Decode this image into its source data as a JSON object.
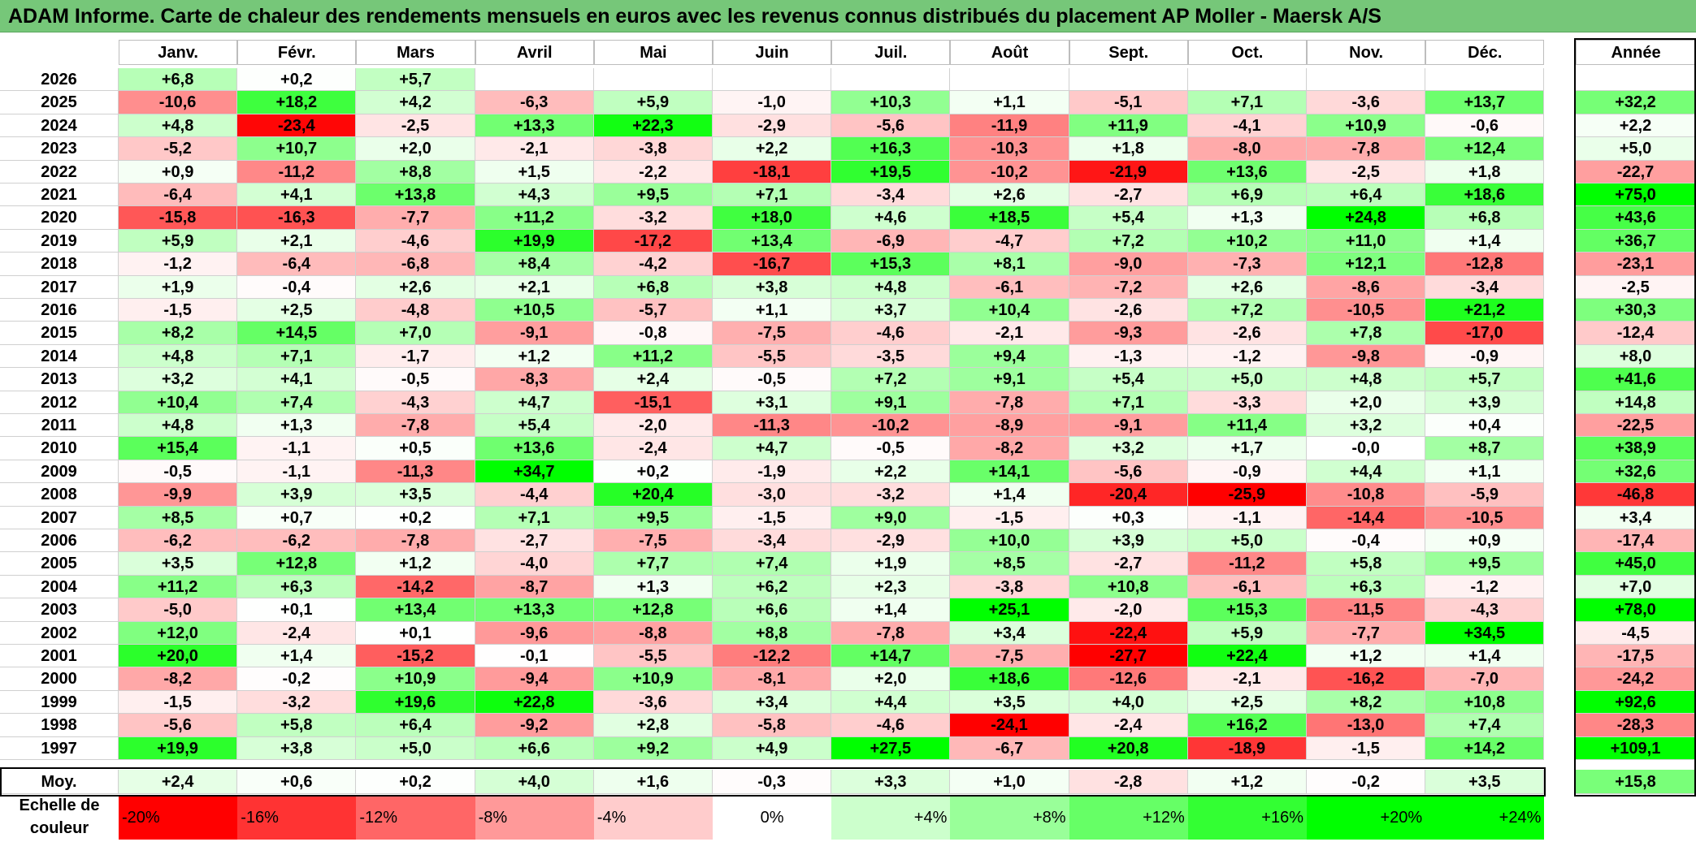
{
  "title": "ADAM Informe. Carte de chaleur des rendements mensuels en euros avec les revenus connus distribués du placement AP Moller - Maersk A/S",
  "chart_data": {
    "type": "heatmap",
    "title": "ADAM Informe. Carte de chaleur des rendements mensuels en euros avec les revenus connus distribués du placement AP Moller - Maersk A/S",
    "columns": [
      "Janv.",
      "Févr.",
      "Mars",
      "Avril",
      "Mai",
      "Juin",
      "Juil.",
      "Août",
      "Sept.",
      "Oct.",
      "Nov.",
      "Déc."
    ],
    "year_header": "Année",
    "rows": [
      {
        "year": "2026",
        "values": [
          "+6,8",
          "+0,2",
          "+5,7",
          "",
          "",
          "",
          "",
          "",
          "",
          "",
          "",
          ""
        ],
        "annual": ""
      },
      {
        "year": "2025",
        "values": [
          "-10,6",
          "+18,2",
          "+4,2",
          "-6,3",
          "+5,9",
          "-1,0",
          "+10,3",
          "+1,1",
          "-5,1",
          "+7,1",
          "-3,6",
          "+13,7"
        ],
        "annual": "+32,2"
      },
      {
        "year": "2024",
        "values": [
          "+4,8",
          "-23,4",
          "-2,5",
          "+13,3",
          "+22,3",
          "-2,9",
          "-5,6",
          "-11,9",
          "+11,9",
          "-4,1",
          "+10,9",
          "-0,6"
        ],
        "annual": "+2,2"
      },
      {
        "year": "2023",
        "values": [
          "-5,2",
          "+10,7",
          "+2,0",
          "-2,1",
          "-3,8",
          "+2,2",
          "+16,3",
          "-10,3",
          "+1,8",
          "-8,0",
          "-7,8",
          "+12,4"
        ],
        "annual": "+5,0"
      },
      {
        "year": "2022",
        "values": [
          "+0,9",
          "-11,2",
          "+8,8",
          "+1,5",
          "-2,2",
          "-18,1",
          "+19,5",
          "-10,2",
          "-21,9",
          "+13,6",
          "-2,5",
          "+1,8"
        ],
        "annual": "-22,7"
      },
      {
        "year": "2021",
        "values": [
          "-6,4",
          "+4,1",
          "+13,8",
          "+4,3",
          "+9,5",
          "+7,1",
          "-3,4",
          "+2,6",
          "-2,7",
          "+6,9",
          "+6,4",
          "+18,6"
        ],
        "annual": "+75,0"
      },
      {
        "year": "2020",
        "values": [
          "-15,8",
          "-16,3",
          "-7,7",
          "+11,2",
          "-3,2",
          "+18,0",
          "+4,6",
          "+18,5",
          "+5,4",
          "+1,3",
          "+24,8",
          "+6,8"
        ],
        "annual": "+43,6"
      },
      {
        "year": "2019",
        "values": [
          "+5,9",
          "+2,1",
          "-4,6",
          "+19,9",
          "-17,2",
          "+13,4",
          "-6,9",
          "-4,7",
          "+7,2",
          "+10,2",
          "+11,0",
          "+1,4"
        ],
        "annual": "+36,7"
      },
      {
        "year": "2018",
        "values": [
          "-1,2",
          "-6,4",
          "-6,8",
          "+8,4",
          "-4,2",
          "-16,7",
          "+15,3",
          "+8,1",
          "-9,0",
          "-7,3",
          "+12,1",
          "-12,8"
        ],
        "annual": "-23,1"
      },
      {
        "year": "2017",
        "values": [
          "+1,9",
          "-0,4",
          "+2,6",
          "+2,1",
          "+6,8",
          "+3,8",
          "+4,8",
          "-6,1",
          "-7,2",
          "+2,6",
          "-8,6",
          "-3,4"
        ],
        "annual": "-2,5"
      },
      {
        "year": "2016",
        "values": [
          "-1,5",
          "+2,5",
          "-4,8",
          "+10,5",
          "-5,7",
          "+1,1",
          "+3,7",
          "+10,4",
          "-2,6",
          "+7,2",
          "-10,5",
          "+21,2"
        ],
        "annual": "+30,3"
      },
      {
        "year": "2015",
        "values": [
          "+8,2",
          "+14,5",
          "+7,0",
          "-9,1",
          "-0,8",
          "-7,5",
          "-4,6",
          "-2,1",
          "-9,3",
          "-2,6",
          "+7,8",
          "-17,0"
        ],
        "annual": "-12,4"
      },
      {
        "year": "2014",
        "values": [
          "+4,8",
          "+7,1",
          "-1,7",
          "+1,2",
          "+11,2",
          "-5,5",
          "-3,5",
          "+9,4",
          "-1,3",
          "-1,2",
          "-9,8",
          "-0,9"
        ],
        "annual": "+8,0"
      },
      {
        "year": "2013",
        "values": [
          "+3,2",
          "+4,1",
          "-0,5",
          "-8,3",
          "+2,4",
          "-0,5",
          "+7,2",
          "+9,1",
          "+5,4",
          "+5,0",
          "+4,8",
          "+5,7"
        ],
        "annual": "+41,6"
      },
      {
        "year": "2012",
        "values": [
          "+10,4",
          "+7,4",
          "-4,3",
          "+4,7",
          "-15,1",
          "+3,1",
          "+9,1",
          "-7,8",
          "+7,1",
          "-3,3",
          "+2,0",
          "+3,9"
        ],
        "annual": "+14,8"
      },
      {
        "year": "2011",
        "values": [
          "+4,8",
          "+1,3",
          "-7,8",
          "+5,4",
          "-2,0",
          "-11,3",
          "-10,2",
          "-8,9",
          "-9,1",
          "+11,4",
          "+3,2",
          "+0,4"
        ],
        "annual": "-22,5"
      },
      {
        "year": "2010",
        "values": [
          "+15,4",
          "-1,1",
          "+0,5",
          "+13,6",
          "-2,4",
          "+4,7",
          "-0,5",
          "-8,2",
          "+3,2",
          "+1,7",
          "-0,0",
          "+8,7"
        ],
        "annual": "+38,9"
      },
      {
        "year": "2009",
        "values": [
          "-0,5",
          "-1,1",
          "-11,3",
          "+34,7",
          "+0,2",
          "-1,9",
          "+2,2",
          "+14,1",
          "-5,6",
          "-0,9",
          "+4,4",
          "+1,1"
        ],
        "annual": "+32,6"
      },
      {
        "year": "2008",
        "values": [
          "-9,9",
          "+3,9",
          "+3,5",
          "-4,4",
          "+20,4",
          "-3,0",
          "-3,2",
          "+1,4",
          "-20,4",
          "-25,9",
          "-10,8",
          "-5,9"
        ],
        "annual": "-46,8"
      },
      {
        "year": "2007",
        "values": [
          "+8,5",
          "+0,7",
          "+0,2",
          "+7,1",
          "+9,5",
          "-1,5",
          "+9,0",
          "-1,5",
          "+0,3",
          "-1,1",
          "-14,4",
          "-10,5"
        ],
        "annual": "+3,4"
      },
      {
        "year": "2006",
        "values": [
          "-6,2",
          "-6,2",
          "-7,8",
          "-2,7",
          "-7,5",
          "-3,4",
          "-2,9",
          "+10,0",
          "+3,9",
          "+5,0",
          "-0,4",
          "+0,9"
        ],
        "annual": "-17,4"
      },
      {
        "year": "2005",
        "values": [
          "+3,5",
          "+12,8",
          "+1,2",
          "-4,0",
          "+7,7",
          "+7,4",
          "+1,9",
          "+8,5",
          "-2,7",
          "-11,2",
          "+5,8",
          "+9,5"
        ],
        "annual": "+45,0"
      },
      {
        "year": "2004",
        "values": [
          "+11,2",
          "+6,3",
          "-14,2",
          "-8,7",
          "+1,3",
          "+6,2",
          "+2,3",
          "-3,8",
          "+10,8",
          "-6,1",
          "+6,3",
          "-1,2"
        ],
        "annual": "+7,0"
      },
      {
        "year": "2003",
        "values": [
          "-5,0",
          "+0,1",
          "+13,4",
          "+13,3",
          "+12,8",
          "+6,6",
          "+1,4",
          "+25,1",
          "-2,0",
          "+15,3",
          "-11,5",
          "-4,3"
        ],
        "annual": "+78,0"
      },
      {
        "year": "2002",
        "values": [
          "+12,0",
          "-2,4",
          "+0,1",
          "-9,6",
          "-8,8",
          "+8,8",
          "-7,8",
          "+3,4",
          "-22,4",
          "+5,9",
          "-7,7",
          "+34,5"
        ],
        "annual": "-4,5"
      },
      {
        "year": "2001",
        "values": [
          "+20,0",
          "+1,4",
          "-15,2",
          "-0,1",
          "-5,5",
          "-12,2",
          "+14,7",
          "-7,5",
          "-27,7",
          "+22,4",
          "+1,2",
          "+1,4"
        ],
        "annual": "-17,5"
      },
      {
        "year": "2000",
        "values": [
          "-8,2",
          "-0,2",
          "+10,9",
          "-9,4",
          "+10,9",
          "-8,1",
          "+2,0",
          "+18,6",
          "-12,6",
          "-2,1",
          "-16,2",
          "-7,0"
        ],
        "annual": "-24,2"
      },
      {
        "year": "1999",
        "values": [
          "-1,5",
          "-3,2",
          "+19,6",
          "+22,8",
          "-3,6",
          "+3,4",
          "+4,4",
          "+3,5",
          "+4,0",
          "+2,5",
          "+8,2",
          "+10,8"
        ],
        "annual": "+92,6"
      },
      {
        "year": "1998",
        "values": [
          "-5,6",
          "+5,8",
          "+6,4",
          "-9,2",
          "+2,8",
          "-5,8",
          "-4,6",
          "-24,1",
          "-2,4",
          "+16,2",
          "-13,0",
          "+7,4"
        ],
        "annual": "-28,3"
      },
      {
        "year": "1997",
        "values": [
          "+19,9",
          "+3,8",
          "+5,0",
          "+6,6",
          "+9,2",
          "+4,9",
          "+27,5",
          "-6,7",
          "+20,8",
          "-18,9",
          "-1,5",
          "+14,2"
        ],
        "annual": "+109,1"
      }
    ],
    "average": {
      "label": "Moy.",
      "values": [
        "+2,4",
        "+0,6",
        "+0,2",
        "+4,0",
        "+1,6",
        "-0,3",
        "+3,3",
        "+1,0",
        "-2,8",
        "+1,2",
        "-0,2",
        "+3,5"
      ],
      "annual": "+15,8"
    },
    "scale": {
      "label": "Echelle de couleur",
      "steps": [
        "-20%",
        "-16%",
        "-12%",
        "-8%",
        "-4%",
        "0%",
        "+4%",
        "+8%",
        "+12%",
        "+16%",
        "+20%",
        "+24%"
      ]
    },
    "colors": {
      "neg_max": "#ff0000",
      "neutral": "#ffffff",
      "pos_max": "#00ff00",
      "title_bg": "#76c779"
    }
  }
}
